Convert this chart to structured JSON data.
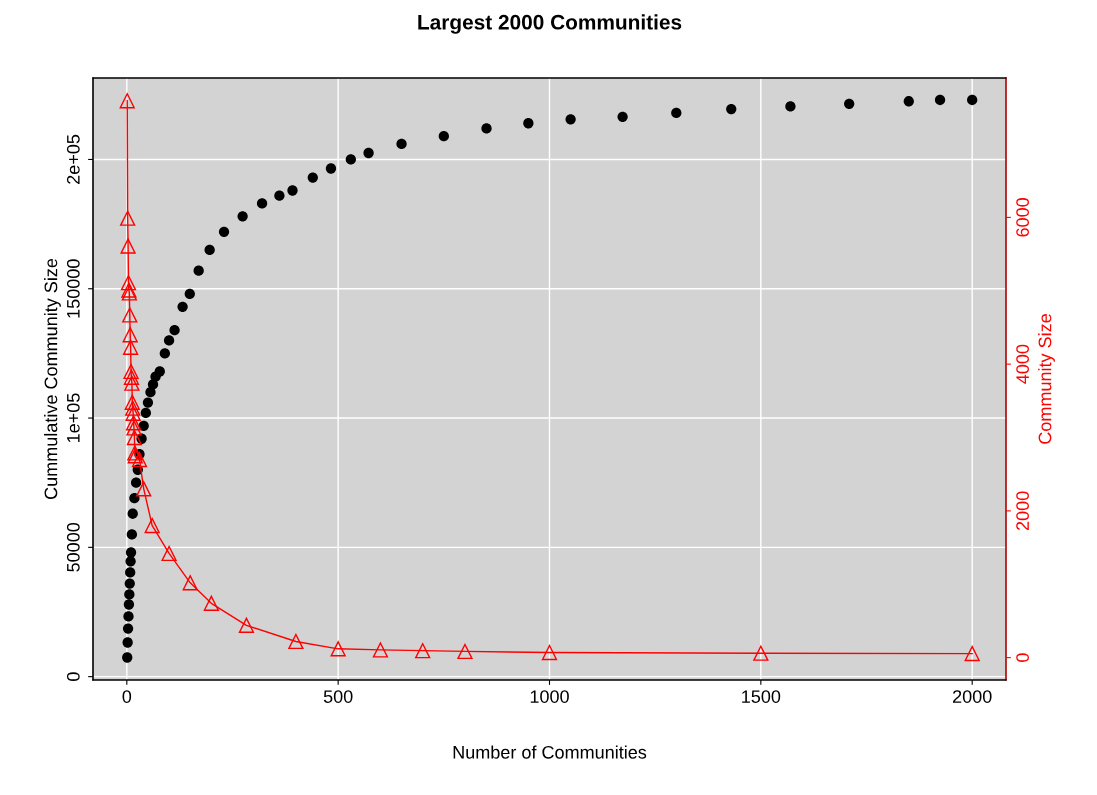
{
  "chart_data": {
    "type": "scatter",
    "title": "Largest 2000 Communities",
    "xlabel": "Number of Communities",
    "ylabel": "Cummulative Community Size",
    "y2label": "Community Size",
    "xlim": [
      -80,
      2080
    ],
    "xticks": [
      0,
      500,
      1000,
      1500,
      2000
    ],
    "ylim": [
      -1300,
      231500
    ],
    "yticks": [
      0,
      50000,
      {
        "value": 100000,
        "label": "1e+05"
      },
      150000,
      {
        "value": 200000,
        "label": "2e+05"
      }
    ],
    "y2lim": [
      -305,
      7900
    ],
    "y2ticks": [
      0,
      2000,
      4000,
      6000
    ],
    "grid": true,
    "legend": false,
    "series": [
      {
        "marker": "circle",
        "color": "#000000",
        "x": [
          1,
          2,
          3,
          4,
          5,
          6,
          7,
          8,
          9,
          10,
          12,
          14,
          18,
          22,
          26,
          30,
          35,
          40,
          45,
          50,
          56,
          62,
          68,
          78,
          90,
          100,
          113,
          132,
          149,
          170,
          196,
          230,
          274,
          320,
          361,
          392,
          440,
          483,
          530,
          572,
          650,
          750,
          851,
          950,
          1050,
          1173,
          1300,
          1430,
          1570,
          1709,
          1850,
          1924,
          2000
        ],
        "values": [
          7400,
          13200,
          18600,
          23300,
          27900,
          31800,
          36000,
          40300,
          44600,
          48000,
          55000,
          63000,
          69000,
          75000,
          80000,
          86000,
          92000,
          97000,
          102000,
          106000,
          110000,
          113000,
          116000,
          118000,
          125000,
          130000,
          134000,
          143000,
          148000,
          157000,
          165000,
          172000,
          178000,
          183000,
          186000,
          188000,
          193000,
          196500,
          200000,
          202500,
          206000,
          209000,
          212000,
          214000,
          215500,
          216500,
          218000,
          219500,
          220500,
          221500,
          222500,
          223000,
          223000
        ]
      },
      {
        "type": "line",
        "axis": "y2",
        "marker": "triangle",
        "color": "#ff0000",
        "x": [
          1,
          2,
          3,
          4,
          5,
          6,
          7,
          8,
          9,
          10,
          11,
          12,
          13,
          14,
          15,
          16,
          17,
          18,
          19,
          20,
          30,
          40,
          60,
          100,
          150,
          200,
          283,
          400,
          500,
          600,
          700,
          800,
          1000,
          1500,
          2000
        ],
        "values": [
          7590,
          5990,
          5610,
          5110,
          5010,
          4970,
          4670,
          4400,
          4230,
          3900,
          3820,
          3740,
          3480,
          3400,
          3330,
          3200,
          3130,
          3000,
          2790,
          2750,
          2700,
          2300,
          1800,
          1420,
          1020,
          740,
          440,
          220,
          120,
          105,
          95,
          85,
          70,
          60,
          55
        ]
      }
    ]
  }
}
